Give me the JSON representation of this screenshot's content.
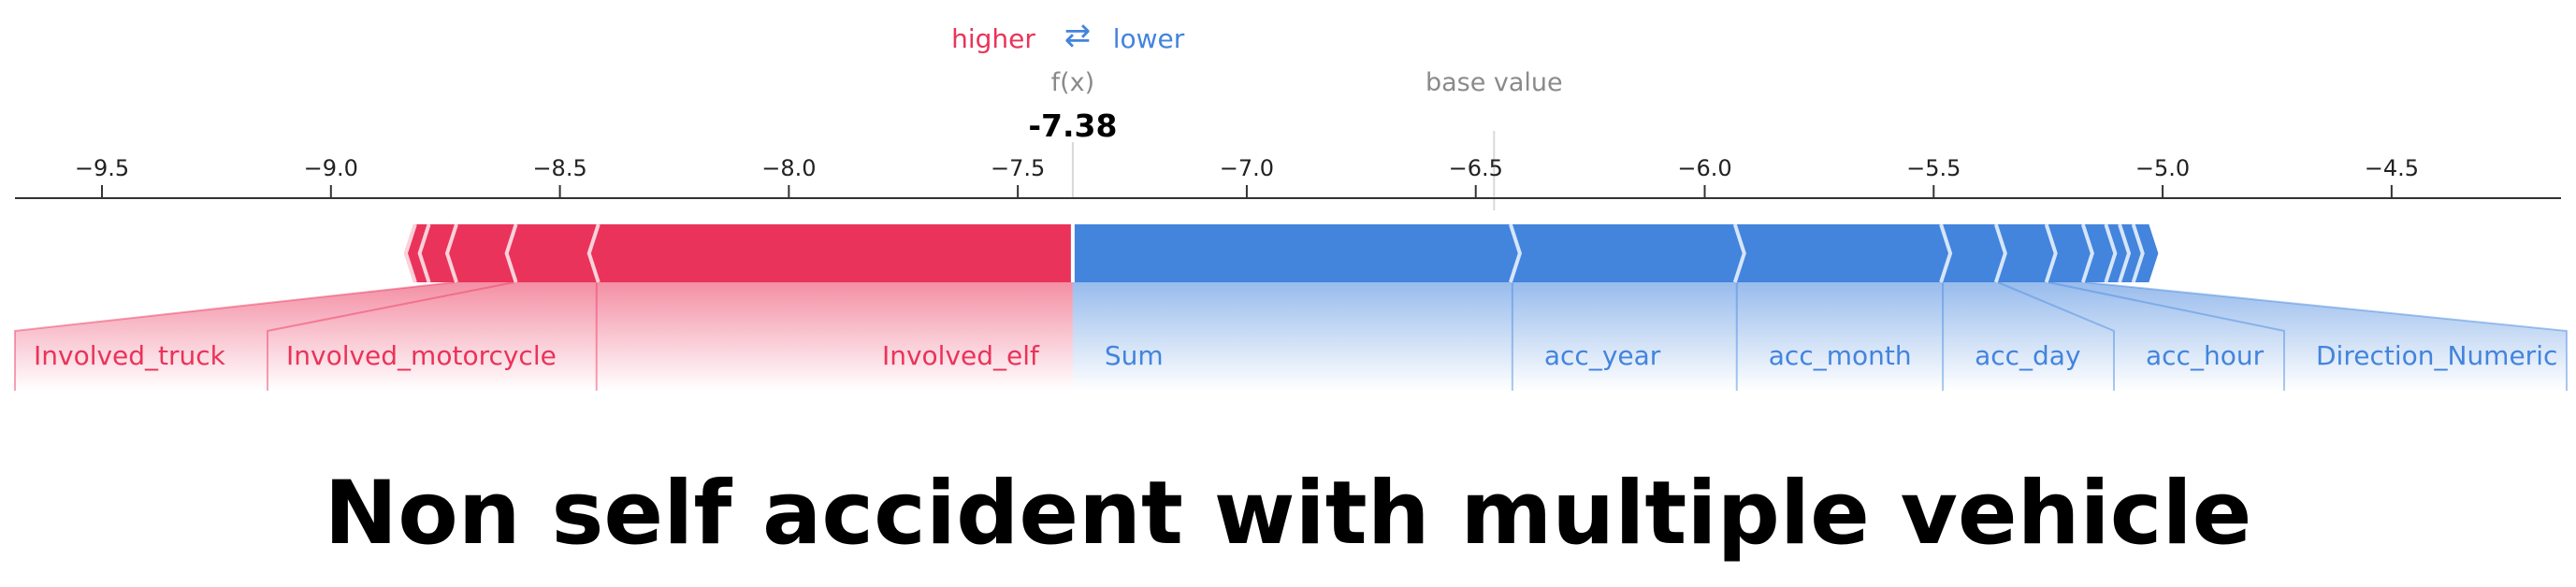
{
  "title": "Non self accident with multiple vehicle",
  "chart_data": {
    "type": "force-plot",
    "legend": {
      "higher_label": "higher",
      "arrow_glyph": "⇄",
      "lower_label": "lower"
    },
    "fx_label": "f(x)",
    "fx_value_label": "-7.38",
    "fx_value": -7.38,
    "base_value_label": "base value",
    "base_value": -6.46,
    "x_ticks": [
      {
        "value": -9.5,
        "label": "−9.5"
      },
      {
        "value": -9.0,
        "label": "−9.0"
      },
      {
        "value": -8.5,
        "label": "−8.5"
      },
      {
        "value": -8.0,
        "label": "−8.0"
      },
      {
        "value": -7.5,
        "label": "−7.5"
      },
      {
        "value": -7.0,
        "label": "−7.0"
      },
      {
        "value": -6.5,
        "label": "−6.5"
      },
      {
        "value": -6.0,
        "label": "−6.0"
      },
      {
        "value": -5.5,
        "label": "−5.5"
      },
      {
        "value": -5.0,
        "label": "−5.0"
      },
      {
        "value": -4.5,
        "label": "−4.5"
      }
    ],
    "xlim": [
      -9.69,
      -4.13
    ],
    "positive_segments": [
      {
        "label": "Involved_elf",
        "start": -8.42,
        "end": -7.38
      },
      {
        "label": "Involved_motorcycle",
        "start": -8.6,
        "end": -8.42
      },
      {
        "label": "Involved_truck",
        "start": -8.73,
        "end": -8.6
      },
      {
        "label": "",
        "start": -8.79,
        "end": -8.73
      },
      {
        "label": "",
        "start": -8.82,
        "end": -8.79
      }
    ],
    "negative_segments": [
      {
        "label": "Sum",
        "start": -7.38,
        "end": -6.42
      },
      {
        "label": "acc_year",
        "start": -6.42,
        "end": -5.93
      },
      {
        "label": "acc_month",
        "start": -5.93,
        "end": -5.48
      },
      {
        "label": "acc_day",
        "start": -5.48,
        "end": -5.36
      },
      {
        "label": "acc_hour",
        "start": -5.36,
        "end": -5.25
      },
      {
        "label": "Direction_Numeric",
        "start": -5.25,
        "end": -5.17
      },
      {
        "label": "",
        "start": -5.17,
        "end": -5.12
      },
      {
        "label": "",
        "start": -5.12,
        "end": -5.09
      },
      {
        "label": "",
        "start": -5.09,
        "end": -5.06
      },
      {
        "label": "",
        "start": -5.06,
        "end": -5.03
      }
    ],
    "colors": {
      "positive": "#ea335a",
      "negative": "#4384dd",
      "divider_positive": "#fbd2db",
      "divider_negative": "#d6e6fa",
      "axis": "#333333",
      "muted": "#8a8a8a"
    }
  }
}
